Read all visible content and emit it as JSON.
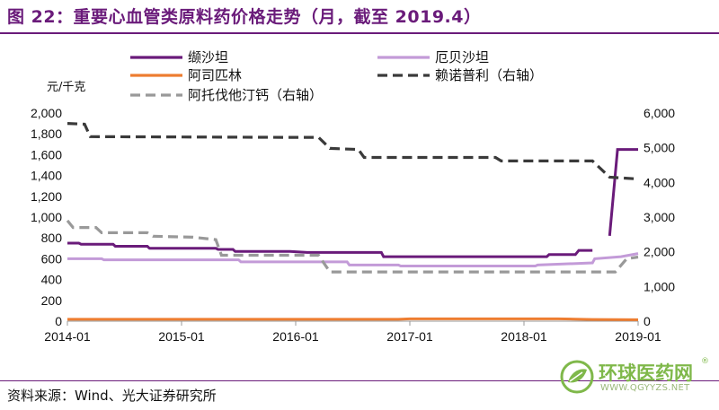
{
  "header": {
    "title": "图 22：重要心血管类原料药价格走势（月，截至 2019.4）"
  },
  "footer": {
    "source": "资料来源：Wind、光大证券研究所"
  },
  "watermark": {
    "name": "环球医药网",
    "url": "WWW.QGYYZS.NET",
    "reg": "®"
  },
  "chart_data": {
    "type": "line",
    "title": "重要心血管类原料药价格走势（月，截至 2019.4）",
    "ylabel": "元/千克",
    "ylim_left": [
      0,
      2000
    ],
    "ylim_right": [
      0,
      6000
    ],
    "x_range": [
      2014.0,
      2019.0
    ],
    "x_ticks": [
      {
        "x": 2014.0,
        "label": "2014-01"
      },
      {
        "x": 2015.0,
        "label": "2015-01"
      },
      {
        "x": 2016.0,
        "label": "2016-01"
      },
      {
        "x": 2017.0,
        "label": "2017-01"
      },
      {
        "x": 2018.0,
        "label": "2018-01"
      },
      {
        "x": 2019.0,
        "label": "2019-01"
      }
    ],
    "y_ticks_left": [
      "0",
      "200",
      "400",
      "600",
      "800",
      "1,000",
      "1,200",
      "1,400",
      "1,600",
      "1,800",
      "2,000"
    ],
    "y_ticks_right": [
      "0",
      "1,000",
      "2,000",
      "3,000",
      "4,000",
      "5,000",
      "6,000"
    ],
    "series": [
      {
        "name": "缬沙坦",
        "axis": "left",
        "color": "#6a1b7a",
        "style": "solid",
        "points": [
          [
            2014.0,
            750
          ],
          [
            2014.1,
            750
          ],
          [
            2014.12,
            740
          ],
          [
            2014.4,
            740
          ],
          [
            2014.42,
            720
          ],
          [
            2014.7,
            720
          ],
          [
            2014.72,
            700
          ],
          [
            2015.3,
            700
          ],
          [
            2015.32,
            690
          ],
          [
            2015.45,
            690
          ],
          [
            2015.47,
            670
          ],
          [
            2015.95,
            670
          ],
          [
            2016.1,
            660
          ],
          [
            2016.75,
            660
          ],
          [
            2016.77,
            620
          ],
          [
            2017.85,
            620
          ],
          [
            2018.0,
            620
          ],
          [
            2018.2,
            620
          ],
          [
            2018.22,
            640
          ],
          [
            2018.45,
            640
          ],
          [
            2018.48,
            680
          ],
          [
            2018.6,
            680
          ]
        ]
      },
      {
        "name": "缬沙坦",
        "axis": "left",
        "color": "#6a1b7a",
        "style": "solid",
        "segment": "tail",
        "points": [
          [
            2018.75,
            820
          ],
          [
            2018.82,
            1650
          ],
          [
            2019.0,
            1650
          ]
        ]
      },
      {
        "name": "厄贝沙坦",
        "axis": "left",
        "color": "#c39bd8",
        "style": "solid",
        "points": [
          [
            2014.0,
            600
          ],
          [
            2014.3,
            600
          ],
          [
            2014.32,
            590
          ],
          [
            2015.5,
            590
          ],
          [
            2015.52,
            570
          ],
          [
            2016.45,
            570
          ],
          [
            2016.47,
            540
          ],
          [
            2016.9,
            540
          ],
          [
            2016.92,
            530
          ],
          [
            2018.1,
            530
          ],
          [
            2018.12,
            540
          ],
          [
            2018.6,
            560
          ],
          [
            2018.62,
            600
          ],
          [
            2018.85,
            620
          ],
          [
            2019.0,
            650
          ]
        ]
      },
      {
        "name": "阿司匹林",
        "axis": "left",
        "color": "#ed7d31",
        "style": "solid",
        "points": [
          [
            2014.0,
            18
          ],
          [
            2016.9,
            18
          ],
          [
            2017.0,
            22
          ],
          [
            2018.3,
            22
          ],
          [
            2018.45,
            20
          ],
          [
            2018.6,
            16
          ],
          [
            2019.0,
            14
          ]
        ]
      },
      {
        "name": "赖诺普利（右轴）",
        "axis": "right",
        "color": "#3a3a3a",
        "style": "dashed",
        "points": [
          [
            2014.0,
            5700
          ],
          [
            2014.15,
            5680
          ],
          [
            2014.2,
            5320
          ],
          [
            2015.9,
            5300
          ],
          [
            2016.2,
            5300
          ],
          [
            2016.3,
            4980
          ],
          [
            2016.55,
            4950
          ],
          [
            2016.6,
            4720
          ],
          [
            2017.75,
            4720
          ],
          [
            2017.8,
            4620
          ],
          [
            2018.6,
            4620
          ],
          [
            2018.75,
            4150
          ],
          [
            2019.0,
            4100
          ]
        ]
      },
      {
        "name": "阿托伐他汀钙（右轴）",
        "axis": "right",
        "color": "#999999",
        "style": "dashed",
        "points": [
          [
            2014.0,
            2900
          ],
          [
            2014.05,
            2700
          ],
          [
            2014.25,
            2700
          ],
          [
            2014.3,
            2550
          ],
          [
            2014.7,
            2550
          ],
          [
            2014.75,
            2450
          ],
          [
            2015.1,
            2420
          ],
          [
            2015.3,
            2350
          ],
          [
            2015.35,
            1900
          ],
          [
            2016.2,
            1900
          ],
          [
            2016.3,
            1420
          ],
          [
            2018.8,
            1420
          ],
          [
            2018.9,
            1800
          ],
          [
            2019.0,
            1850
          ]
        ]
      }
    ],
    "legend": [
      {
        "label": "缬沙坦",
        "color": "#6a1b7a",
        "style": "solid"
      },
      {
        "label": "厄贝沙坦",
        "color": "#c39bd8",
        "style": "solid"
      },
      {
        "label": "阿司匹林",
        "color": "#ed7d31",
        "style": "solid"
      },
      {
        "label": "赖诺普利（右轴）",
        "color": "#3a3a3a",
        "style": "dashed"
      },
      {
        "label": "阿托伐他汀钙（右轴）",
        "color": "#999999",
        "style": "dashed"
      }
    ]
  }
}
